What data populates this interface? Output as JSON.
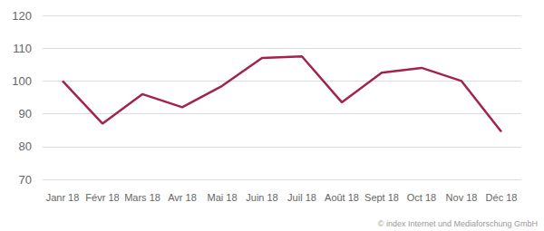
{
  "chart_data": {
    "type": "line",
    "categories": [
      "Janr 18",
      "Févr 18",
      "Mars 18",
      "Avr 18",
      "Mai 18",
      "Juin 18",
      "Juil 18",
      "Août 18",
      "Sept 18",
      "Oct 18",
      "Nov 18",
      "Déc 18"
    ],
    "values": [
      100,
      87,
      96,
      92,
      98.5,
      107,
      107.5,
      93.5,
      102.5,
      104,
      100,
      84.5
    ],
    "color": "#a3234f",
    "ylim": [
      70,
      120
    ],
    "yticks": [
      70,
      80,
      90,
      100,
      110,
      120
    ],
    "grid": true,
    "annotations": [
      "© index Internet und Mediaforschung GmbH"
    ]
  }
}
